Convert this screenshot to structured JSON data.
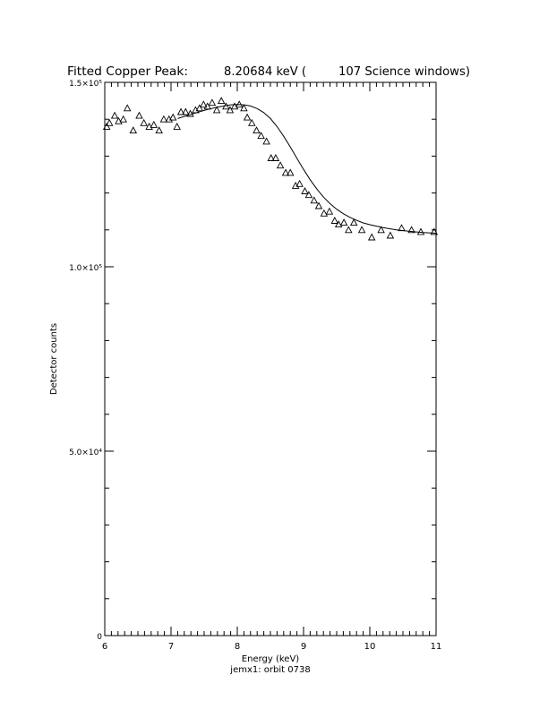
{
  "chart_data": {
    "type": "scatter",
    "title": "Fitted Copper Peak:",
    "title_energy": "8.20684 keV (",
    "title_windows": "107 Science windows)",
    "xlabel": "Energy (keV)",
    "ylabel": "Detector counts",
    "footer": "jemx1: orbit 0738",
    "xlim": [
      6,
      11
    ],
    "ylim": [
      0,
      150000
    ],
    "grid": false,
    "x_tick_labels": [
      {
        "value": 6,
        "label": "6"
      },
      {
        "value": 7,
        "label": "7"
      },
      {
        "value": 8,
        "label": "8"
      },
      {
        "value": 9,
        "label": "9"
      },
      {
        "value": 10,
        "label": "10"
      },
      {
        "value": 11,
        "label": "11"
      }
    ],
    "y_tick_labels": [
      {
        "value": 0,
        "label": "0"
      },
      {
        "value": 50000,
        "label": "5.0×10⁴"
      },
      {
        "value": 100000,
        "label": "1.0×10⁵"
      },
      {
        "value": 150000,
        "label": "1.5×10⁵"
      }
    ],
    "series": [
      {
        "marker": "triangle",
        "x": [
          6.03,
          6.07,
          6.15,
          6.21,
          6.28,
          6.34,
          6.43,
          6.52,
          6.59,
          6.67,
          6.74,
          6.82,
          6.89,
          6.97,
          7.03,
          7.09,
          7.15,
          7.22,
          7.29,
          7.37,
          7.43,
          7.49,
          7.55,
          7.62,
          7.69,
          7.76,
          7.83,
          7.89,
          7.96,
          8.03,
          8.1,
          8.15,
          8.22,
          8.29,
          8.36,
          8.44,
          8.51,
          8.58,
          8.65,
          8.73,
          8.8,
          8.88,
          8.94,
          9.02,
          9.08,
          9.16,
          9.23,
          9.31,
          9.39,
          9.47,
          9.53,
          9.61,
          9.68,
          9.76,
          9.88,
          10.03,
          10.17,
          10.31,
          10.48,
          10.63,
          10.77,
          10.97
        ],
        "y": [
          138000,
          139000,
          141000,
          139500,
          140000,
          143000,
          137000,
          141000,
          139000,
          138000,
          138500,
          137000,
          140000,
          140000,
          140500,
          138000,
          142000,
          142000,
          141500,
          142500,
          143000,
          144000,
          143500,
          144500,
          142500,
          145000,
          143500,
          142500,
          143500,
          144000,
          143000,
          140500,
          139000,
          137000,
          135500,
          134000,
          129500,
          129500,
          127500,
          125500,
          125500,
          122000,
          122500,
          120500,
          119500,
          118000,
          116500,
          114500,
          115000,
          112500,
          111500,
          112000,
          110000,
          112000,
          110000,
          108000,
          110000,
          108500,
          110500,
          110000,
          109500,
          109500
        ]
      },
      {
        "type": "line",
        "x": [
          7.1,
          7.3,
          7.5,
          7.7,
          7.9,
          8.0,
          8.1,
          8.2,
          8.3,
          8.4,
          8.5,
          8.6,
          8.7,
          8.8,
          8.9,
          9.0,
          9.1,
          9.2,
          9.3,
          9.4,
          9.5,
          9.6,
          9.7,
          9.8,
          9.9,
          10.0,
          10.2,
          10.4,
          10.6,
          10.8,
          11.0
        ],
        "y": [
          140200,
          141300,
          142400,
          143300,
          143900,
          144000,
          143900,
          143600,
          142900,
          141800,
          140200,
          138000,
          135400,
          132500,
          129400,
          126400,
          123600,
          121100,
          118900,
          117100,
          115600,
          114400,
          113400,
          112600,
          111900,
          111400,
          110600,
          110000,
          109600,
          109300,
          109100
        ]
      }
    ]
  }
}
